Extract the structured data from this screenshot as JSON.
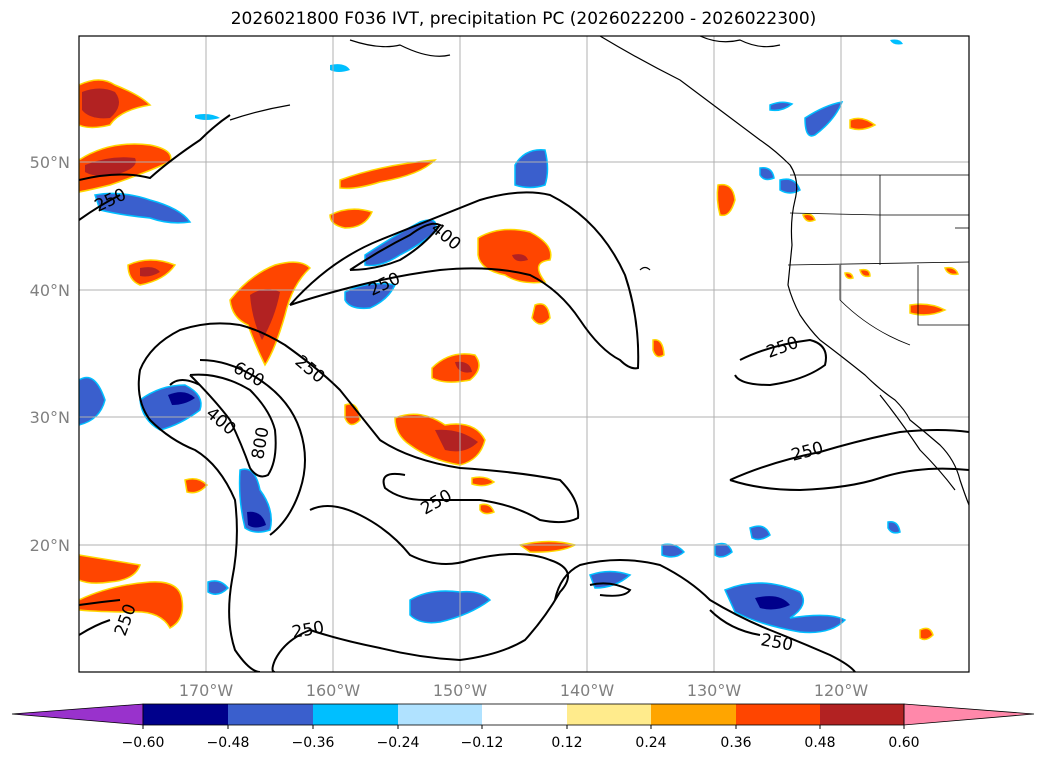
{
  "title": "2026021800 F036 IVT, precipitation PC (2026022200 - 2026022300)",
  "map": {
    "lat_labels": [
      "50°N",
      "40°N",
      "30°N",
      "20°N"
    ],
    "lon_labels": [
      "170°W",
      "160°W",
      "150°W",
      "140°W",
      "130°W",
      "120°W"
    ],
    "ivt_contour_labels": [
      "250",
      "400",
      "250",
      "250",
      "600",
      "400",
      "800",
      "250",
      "250",
      "250",
      "250",
      "250",
      "250"
    ]
  },
  "colorbar": {
    "ticks": [
      "−0.60",
      "−0.48",
      "−0.36",
      "−0.24",
      "−0.12",
      "0.12",
      "0.24",
      "0.36",
      "0.48",
      "0.60"
    ],
    "colors": [
      "#9932cc",
      "#00008b",
      "#3a5fcd",
      "#00bfff",
      "#b0e2ff",
      "#ffffff",
      "#ffeb8c",
      "#ffa500",
      "#ff4500",
      "#b22222",
      "#ff88aa"
    ]
  }
}
